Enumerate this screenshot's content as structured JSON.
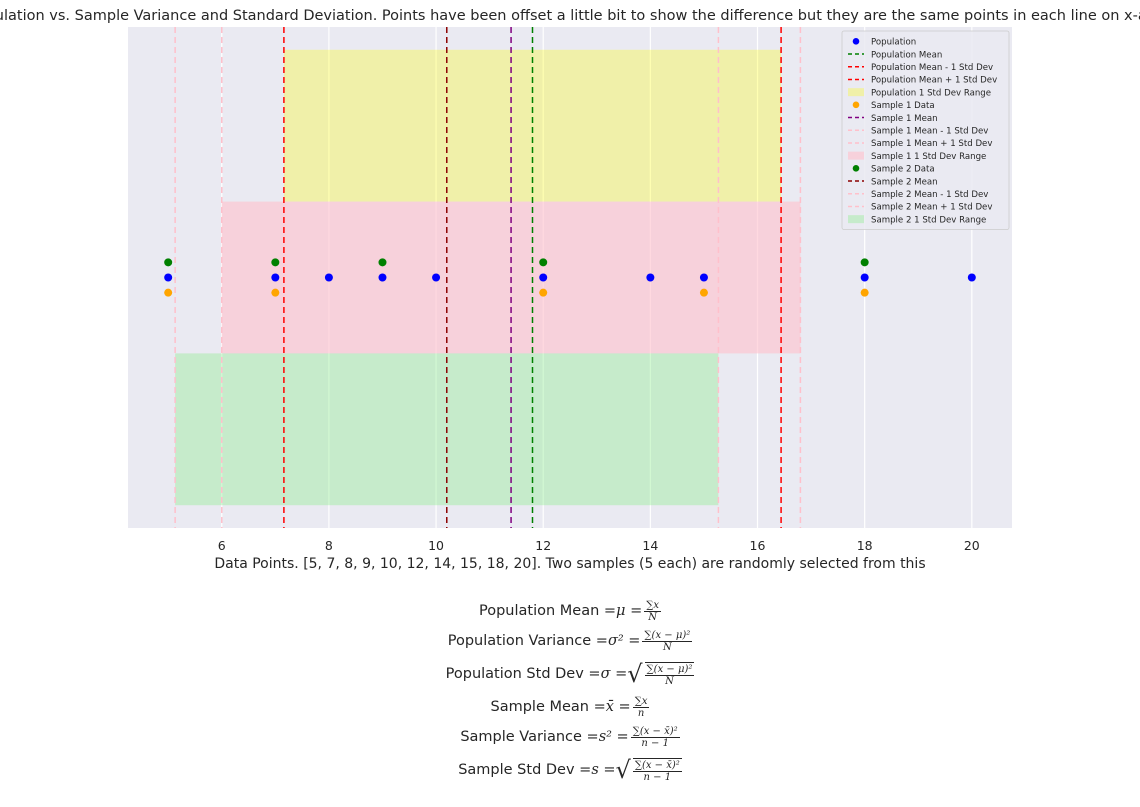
{
  "chart_data": {
    "type": "scatter",
    "title": "Population vs. Sample Variance and Standard Deviation. Points have been offset a little bit to show the difference but they are the same points in each line on x-axis.",
    "xlabel": "Data Points. [5, 7, 8, 9, 10, 12, 14, 15, 18, 20]. Two samples (5 each) are randomly selected from this",
    "ylabel": "",
    "xlim": [
      4.25,
      20.75
    ],
    "ylim": [
      -0.165,
      0.165
    ],
    "xticks": [
      6,
      8,
      10,
      12,
      14,
      16,
      18,
      20
    ],
    "xtick_labels": [
      "6",
      "8",
      "10",
      "12",
      "14",
      "16",
      "18",
      "20"
    ],
    "grid": true,
    "legend_position": "upper right",
    "series": [
      {
        "name": "Population",
        "kind": "points",
        "color": "#0000ff",
        "x": [
          5,
          7,
          8,
          9,
          10,
          12,
          14,
          15,
          18,
          20
        ],
        "y": 0
      },
      {
        "name": "Population Mean",
        "kind": "vline",
        "color": "#008000",
        "dash": "dashed",
        "x": 11.8
      },
      {
        "name": "Population Mean - 1 Std Dev",
        "kind": "vline",
        "color": "#ff0000",
        "dash": "dashed",
        "x": 7.16
      },
      {
        "name": "Population Mean + 1 Std Dev",
        "kind": "vline",
        "color": "#ff0000",
        "dash": "dashed",
        "x": 16.44
      },
      {
        "name": "Population 1 Std Dev Range",
        "kind": "band",
        "color": "#ffff00",
        "opacity": 0.3,
        "x": [
          7.16,
          16.44
        ],
        "y": [
          0.05,
          0.15
        ]
      },
      {
        "name": "Sample 1 Data",
        "kind": "points",
        "color": "#ffa500",
        "x": [
          5,
          7,
          12,
          15,
          18
        ],
        "y": -0.01
      },
      {
        "name": "Sample 1 Mean",
        "kind": "vline",
        "color": "#800080",
        "dash": "dashed",
        "x": 11.4
      },
      {
        "name": "Sample 1 Mean - 1 Std Dev",
        "kind": "vline",
        "color": "#ffc0cb",
        "dash": "dashed",
        "x": 6.0
      },
      {
        "name": "Sample 1 Mean + 1 Std Dev",
        "kind": "vline",
        "color": "#ffc0cb",
        "dash": "dashed",
        "x": 16.8
      },
      {
        "name": "Sample 1 1 Std Dev Range",
        "kind": "band",
        "color": "#ffc0cb",
        "opacity": 0.6,
        "x": [
          6.0,
          16.8
        ],
        "y": [
          -0.05,
          0.05
        ]
      },
      {
        "name": "Sample 2 Data",
        "kind": "points",
        "color": "#008000",
        "x": [
          5,
          7,
          9,
          12,
          18
        ],
        "y": 0.01
      },
      {
        "name": "Sample 2 Mean",
        "kind": "vline",
        "color": "#8b0000",
        "dash": "dashed",
        "x": 10.2
      },
      {
        "name": "Sample 2 Mean - 1 Std Dev",
        "kind": "vline",
        "color": "#ffc0cb",
        "dash": "dashed",
        "x": 5.13
      },
      {
        "name": "Sample 2 Mean + 1 Std Dev",
        "kind": "vline",
        "color": "#ffc0cb",
        "dash": "dashed",
        "x": 15.27
      },
      {
        "name": "Sample 2 1 Std Dev Range",
        "kind": "band",
        "color": "#90ee90",
        "opacity": 0.4,
        "x": [
          5.13,
          15.27
        ],
        "y": [
          -0.15,
          -0.05
        ]
      }
    ]
  },
  "formulas": [
    {
      "lhs": "Population Mean = ",
      "math": "μ = ",
      "num": "∑x",
      "den": "N"
    },
    {
      "lhs": "Population Variance = ",
      "math": "σ² = ",
      "num": "∑(x − μ)²",
      "den": "N"
    },
    {
      "lhs": "Population Std Dev = ",
      "math": "σ = ",
      "num": "∑(x − μ)²",
      "den": "N"
    },
    {
      "lhs": "Sample Mean = ",
      "math": "x̄ = ",
      "num": "∑x",
      "den": "n"
    },
    {
      "lhs": "Sample Variance = ",
      "math": "s² = ",
      "num": "∑(x − x̄)²",
      "den": "n − 1"
    },
    {
      "lhs": "Sample Std Dev = ",
      "math": "s = ",
      "num": "∑(x − x̄)²",
      "den": "n − 1"
    }
  ],
  "colors": {
    "axes_bg": "#eaeaf2",
    "grid": "#ffffff",
    "text": "#262626"
  }
}
